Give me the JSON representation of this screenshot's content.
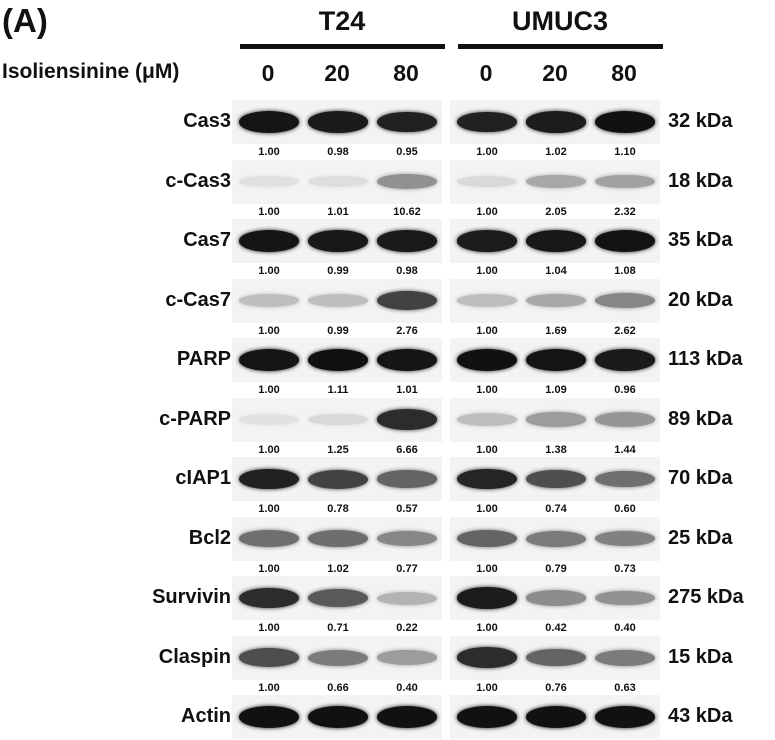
{
  "panel_label": "(A)",
  "treatment_label": "Isoliensinine (μM)",
  "groups": [
    {
      "name": "T24",
      "doses": [
        "0",
        "20",
        "80"
      ]
    },
    {
      "name": "UMUC3",
      "doses": [
        "0",
        "20",
        "80"
      ]
    }
  ],
  "rows": [
    {
      "protein": "Cas3",
      "size": "32 kDa",
      "t24": [
        "1.00",
        "0.98",
        "0.95"
      ],
      "umuc3": [
        "1.00",
        "1.02",
        "1.10"
      ],
      "t24_intensity": [
        0.95,
        0.93,
        0.9
      ],
      "umuc3_intensity": [
        0.9,
        0.92,
        0.97
      ]
    },
    {
      "protein": "c-Cas3",
      "size": "18 kDa",
      "t24": [
        "1.00",
        "1.01",
        "10.62"
      ],
      "umuc3": [
        "1.00",
        "2.05",
        "2.32"
      ],
      "t24_intensity": [
        0.05,
        0.06,
        0.4
      ],
      "umuc3_intensity": [
        0.08,
        0.3,
        0.33
      ]
    },
    {
      "protein": "Cas7",
      "size": "35 kDa",
      "t24": [
        "1.00",
        "0.99",
        "0.98"
      ],
      "umuc3": [
        "1.00",
        "1.04",
        "1.08"
      ],
      "t24_intensity": [
        0.95,
        0.94,
        0.93
      ],
      "umuc3_intensity": [
        0.92,
        0.94,
        0.96
      ]
    },
    {
      "protein": "c-Cas7",
      "size": "20 kDa",
      "t24": [
        "1.00",
        "0.99",
        "2.76"
      ],
      "umuc3": [
        "1.00",
        "1.69",
        "2.62"
      ],
      "t24_intensity": [
        0.2,
        0.2,
        0.75
      ],
      "umuc3_intensity": [
        0.2,
        0.3,
        0.45
      ]
    },
    {
      "protein": "PARP",
      "size": "113 kDa",
      "t24": [
        "1.00",
        "1.11",
        "1.01"
      ],
      "umuc3": [
        "1.00",
        "1.09",
        "0.96"
      ],
      "t24_intensity": [
        0.95,
        0.97,
        0.95
      ],
      "umuc3_intensity": [
        0.97,
        0.95,
        0.93
      ]
    },
    {
      "protein": "c-PARP",
      "size": "89 kDa",
      "t24": [
        "1.00",
        "1.25",
        "6.66"
      ],
      "umuc3": [
        "1.00",
        "1.38",
        "1.44"
      ],
      "t24_intensity": [
        0.04,
        0.08,
        0.85
      ],
      "umuc3_intensity": [
        0.2,
        0.35,
        0.38
      ]
    },
    {
      "protein": "cIAP1",
      "size": "70 kDa",
      "t24": [
        "1.00",
        "0.78",
        "0.57"
      ],
      "umuc3": [
        "1.00",
        "0.74",
        "0.60"
      ],
      "t24_intensity": [
        0.9,
        0.75,
        0.6
      ],
      "umuc3_intensity": [
        0.88,
        0.7,
        0.55
      ]
    },
    {
      "protein": "Bcl2",
      "size": "25 kDa",
      "t24": [
        "1.00",
        "1.02",
        "0.77"
      ],
      "umuc3": [
        "1.00",
        "0.79",
        "0.73"
      ],
      "t24_intensity": [
        0.55,
        0.56,
        0.45
      ],
      "umuc3_intensity": [
        0.6,
        0.5,
        0.47
      ]
    },
    {
      "protein": "Survivin",
      "size": "275 kDa",
      "t24": [
        "1.00",
        "0.71",
        "0.22"
      ],
      "umuc3": [
        "1.00",
        "0.42",
        "0.40"
      ],
      "t24_intensity": [
        0.85,
        0.65,
        0.25
      ],
      "umuc3_intensity": [
        0.92,
        0.42,
        0.4
      ]
    },
    {
      "protein": "Claspin",
      "size": "15 kDa",
      "t24": [
        "1.00",
        "0.66",
        "0.40"
      ],
      "umuc3": [
        "1.00",
        "0.76",
        "0.63"
      ],
      "t24_intensity": [
        0.7,
        0.5,
        0.35
      ],
      "umuc3_intensity": [
        0.85,
        0.6,
        0.5
      ]
    },
    {
      "protein": "Actin",
      "size": "43 kDa",
      "t24": null,
      "umuc3": null,
      "t24_intensity": [
        0.97,
        0.97,
        0.97
      ],
      "umuc3_intensity": [
        0.97,
        0.97,
        0.97
      ]
    }
  ]
}
